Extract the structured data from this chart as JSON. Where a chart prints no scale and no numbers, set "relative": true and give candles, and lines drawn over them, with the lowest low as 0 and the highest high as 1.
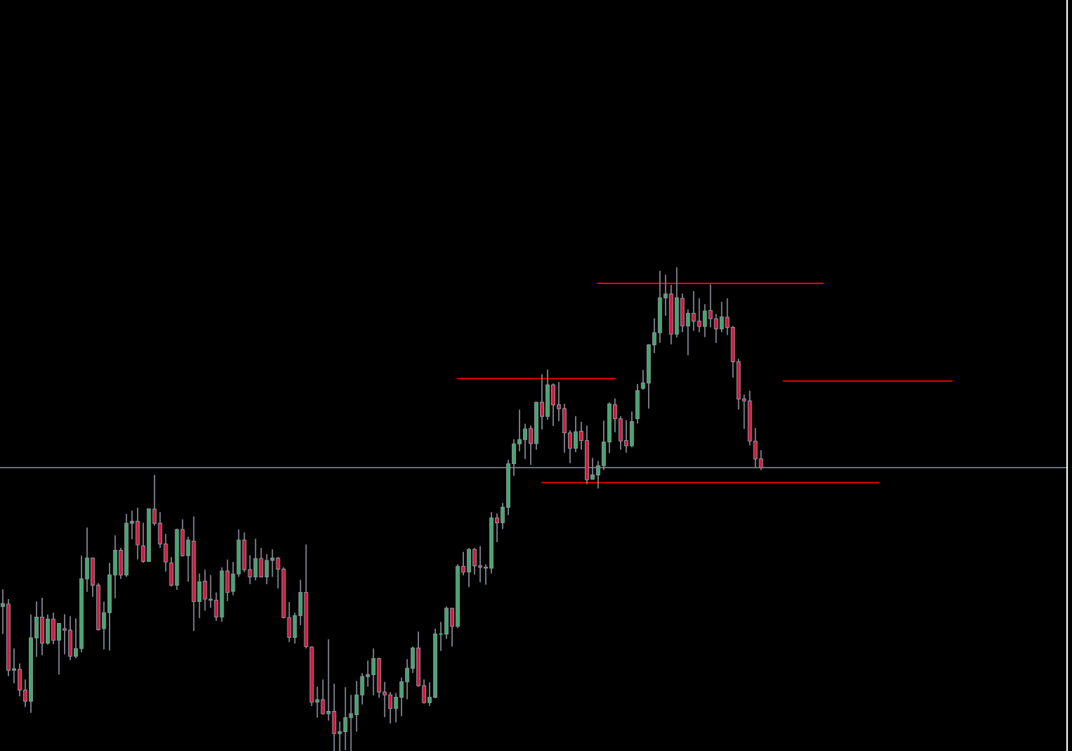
{
  "chart_data": {
    "type": "candlestick",
    "relative": true,
    "categories": [
      null,
      null,
      null,
      null,
      null,
      null,
      null,
      null,
      null,
      null,
      null,
      null,
      null,
      null,
      null,
      null,
      null,
      null,
      null,
      null,
      null,
      null,
      null,
      null,
      null,
      null,
      null,
      null,
      null,
      null,
      null,
      null,
      null,
      null,
      null,
      null,
      null,
      null,
      null,
      null,
      null,
      null,
      null,
      null,
      null,
      null,
      null,
      null,
      null,
      null,
      null,
      null,
      null,
      null,
      null,
      null,
      null,
      null,
      null,
      null,
      null,
      null,
      null,
      null,
      null,
      null,
      null,
      null,
      null,
      null,
      null,
      null,
      null,
      null,
      null,
      null,
      null,
      null,
      null,
      null,
      null,
      null,
      null,
      null,
      null,
      null,
      null,
      null,
      null,
      null,
      null,
      null,
      null,
      null,
      null,
      null,
      null,
      null,
      null,
      null,
      null,
      null,
      null,
      null,
      null,
      null,
      null,
      null,
      null,
      null,
      null,
      null,
      null,
      null,
      null,
      null,
      null,
      null,
      null,
      null,
      null,
      null,
      null,
      null,
      null,
      null,
      null,
      null,
      null,
      null,
      null,
      null,
      null,
      null,
      null,
      null,
      null,
      null,
      null,
      null,
      null,
      null,
      null,
      null,
      null,
      null,
      null,
      null,
      null,
      null,
      null,
      null,
      null,
      null,
      null,
      null,
      null,
      null,
      null,
      null,
      null,
      null,
      null,
      null,
      null,
      null,
      null,
      null,
      null,
      null,
      null,
      null,
      null,
      null,
      null,
      null,
      null,
      null,
      null,
      null,
      null,
      null,
      null,
      null,
      null,
      null,
      null,
      null,
      null,
      null
    ],
    "ohlc": [
      [
        0.299,
        0.334,
        0.242,
        0.305
      ],
      [
        0.304,
        0.314,
        0.155,
        0.167
      ],
      [
        0.167,
        0.212,
        0.14,
        0.17
      ],
      [
        0.169,
        0.181,
        0.113,
        0.126
      ],
      [
        0.126,
        0.148,
        0.091,
        0.103
      ],
      [
        0.103,
        0.282,
        0.079,
        0.234
      ],
      [
        0.234,
        0.309,
        0.195,
        0.277
      ],
      [
        0.277,
        0.317,
        0.198,
        0.223
      ],
      [
        0.223,
        0.282,
        0.22,
        0.273
      ],
      [
        0.273,
        0.286,
        0.221,
        0.229
      ],
      [
        0.229,
        0.265,
        0.158,
        0.264
      ],
      [
        0.253,
        0.283,
        0.2,
        0.25
      ],
      [
        0.25,
        0.279,
        0.188,
        0.196
      ],
      [
        0.196,
        0.274,
        0.192,
        0.212
      ],
      [
        0.212,
        0.404,
        0.204,
        0.356
      ],
      [
        0.356,
        0.462,
        0.329,
        0.399
      ],
      [
        0.399,
        0.399,
        0.319,
        0.343
      ],
      [
        0.343,
        0.347,
        0.249,
        0.251
      ],
      [
        0.253,
        0.309,
        0.21,
        0.286
      ],
      [
        0.286,
        0.389,
        0.208,
        0.364
      ],
      [
        0.364,
        0.446,
        0.316,
        0.415
      ],
      [
        0.415,
        0.42,
        0.356,
        0.364
      ],
      [
        0.364,
        0.49,
        0.36,
        0.471
      ],
      [
        0.471,
        0.497,
        0.438,
        0.475
      ],
      [
        0.475,
        0.503,
        0.396,
        0.426
      ],
      [
        0.424,
        0.472,
        0.389,
        0.392
      ],
      [
        0.392,
        0.501,
        0.391,
        0.501
      ],
      [
        0.5,
        0.571,
        0.466,
        0.471
      ],
      [
        0.471,
        0.494,
        0.42,
        0.428
      ],
      [
        0.428,
        0.449,
        0.371,
        0.391
      ],
      [
        0.389,
        0.401,
        0.34,
        0.343
      ],
      [
        0.343,
        0.46,
        0.333,
        0.458
      ],
      [
        0.458,
        0.479,
        0.402,
        0.404
      ],
      [
        0.404,
        0.443,
        0.35,
        0.436
      ],
      [
        0.434,
        0.485,
        0.248,
        0.309
      ],
      [
        0.309,
        0.367,
        0.275,
        0.35
      ],
      [
        0.351,
        0.375,
        0.29,
        0.314
      ],
      [
        0.312,
        0.364,
        0.296,
        0.314
      ],
      [
        0.312,
        0.328,
        0.269,
        0.277
      ],
      [
        0.277,
        0.38,
        0.267,
        0.372
      ],
      [
        0.372,
        0.396,
        0.31,
        0.328
      ],
      [
        0.33,
        0.391,
        0.322,
        0.366
      ],
      [
        0.366,
        0.458,
        0.36,
        0.436
      ],
      [
        0.436,
        0.452,
        0.37,
        0.375
      ],
      [
        0.375,
        0.405,
        0.345,
        0.36
      ],
      [
        0.36,
        0.439,
        0.353,
        0.398
      ],
      [
        0.398,
        0.42,
        0.359,
        0.36
      ],
      [
        0.36,
        0.407,
        0.345,
        0.394
      ],
      [
        0.394,
        0.417,
        0.36,
        0.399
      ],
      [
        0.399,
        0.401,
        0.336,
        0.376
      ],
      [
        0.376,
        0.38,
        0.274,
        0.276
      ],
      [
        0.276,
        0.308,
        0.225,
        0.235
      ],
      [
        0.235,
        0.286,
        0.222,
        0.28
      ],
      [
        0.28,
        0.354,
        0.26,
        0.328
      ],
      [
        0.328,
        0.427,
        0.212,
        0.216
      ],
      [
        0.215,
        0.216,
        0.093,
        0.101
      ],
      [
        0.101,
        0.133,
        0.069,
        0.106
      ],
      [
        0.106,
        0.148,
        0.075,
        0.077
      ],
      [
        0.077,
        0.231,
        0.063,
        0.082
      ],
      [
        0.082,
        0.139,
        0.0,
        0.036
      ],
      [
        0.036,
        0.061,
        0.0,
        0.04
      ],
      [
        0.04,
        0.132,
        0.002,
        0.069
      ],
      [
        0.069,
        0.116,
        0.0,
        0.077
      ],
      [
        0.075,
        0.145,
        0.04,
        0.116
      ],
      [
        0.116,
        0.161,
        0.096,
        0.154
      ],
      [
        0.154,
        0.187,
        0.133,
        0.158
      ],
      [
        0.158,
        0.212,
        0.115,
        0.191
      ],
      [
        0.191,
        0.193,
        0.11,
        0.122
      ],
      [
        0.122,
        0.143,
        0.07,
        0.116
      ],
      [
        0.116,
        0.122,
        0.057,
        0.088
      ],
      [
        0.088,
        0.12,
        0.059,
        0.111
      ],
      [
        0.111,
        0.152,
        0.072,
        0.143
      ],
      [
        0.143,
        0.19,
        0.107,
        0.171
      ],
      [
        0.171,
        0.216,
        0.161,
        0.213
      ],
      [
        0.213,
        0.247,
        0.133,
        0.135
      ],
      [
        0.135,
        0.148,
        0.098,
        0.1
      ],
      [
        0.1,
        0.142,
        0.093,
        0.111
      ],
      [
        0.111,
        0.253,
        0.109,
        0.242
      ],
      [
        0.242,
        0.267,
        0.207,
        0.242
      ],
      [
        0.242,
        0.299,
        0.232,
        0.295
      ],
      [
        0.295,
        0.296,
        0.216,
        0.258
      ],
      [
        0.258,
        0.386,
        0.254,
        0.382
      ],
      [
        0.382,
        0.412,
        0.363,
        0.37
      ],
      [
        0.37,
        0.42,
        0.339,
        0.417
      ],
      [
        0.417,
        0.42,
        0.365,
        0.383
      ],
      [
        0.383,
        0.424,
        0.349,
        0.38
      ],
      [
        0.38,
        0.386,
        0.344,
        0.378
      ],
      [
        0.378,
        0.494,
        0.367,
        0.482
      ],
      [
        0.482,
        0.491,
        0.432,
        0.472
      ],
      [
        0.472,
        0.513,
        0.459,
        0.504
      ],
      [
        0.504,
        0.602,
        0.488,
        0.594
      ],
      [
        0.594,
        0.645,
        0.569,
        0.635
      ],
      [
        0.635,
        0.706,
        0.62,
        0.644
      ],
      [
        0.644,
        0.677,
        0.604,
        0.666
      ],
      [
        0.667,
        0.673,
        0.592,
        0.636
      ],
      [
        0.636,
        0.722,
        0.623,
        0.721
      ],
      [
        0.721,
        0.779,
        0.665,
        0.692
      ],
      [
        0.692,
        0.789,
        0.685,
        0.757
      ],
      [
        0.757,
        0.76,
        0.672,
        0.716
      ],
      [
        0.716,
        0.763,
        0.682,
        0.708
      ],
      [
        0.708,
        0.718,
        0.617,
        0.658
      ],
      [
        0.658,
        0.663,
        0.595,
        0.626
      ],
      [
        0.626,
        0.692,
        0.618,
        0.66
      ],
      [
        0.661,
        0.681,
        0.623,
        0.642
      ],
      [
        0.642,
        0.673,
        0.552,
        0.561
      ],
      [
        0.562,
        0.606,
        0.561,
        0.571
      ],
      [
        0.571,
        0.6,
        0.543,
        0.59
      ],
      [
        0.59,
        0.683,
        0.581,
        0.639
      ],
      [
        0.639,
        0.721,
        0.616,
        0.718
      ],
      [
        0.716,
        0.729,
        0.659,
        0.687
      ],
      [
        0.687,
        0.692,
        0.623,
        0.641
      ],
      [
        0.642,
        0.684,
        0.617,
        0.631
      ],
      [
        0.631,
        0.702,
        0.628,
        0.681
      ],
      [
        0.687,
        0.759,
        0.677,
        0.745
      ],
      [
        0.75,
        0.788,
        0.747,
        0.761
      ],
      [
        0.761,
        0.841,
        0.708,
        0.84
      ],
      [
        0.84,
        0.895,
        0.823,
        0.865
      ],
      [
        0.865,
        0.993,
        0.844,
        0.937
      ],
      [
        0.937,
        0.985,
        0.9,
        0.945
      ],
      [
        0.945,
        0.964,
        0.841,
        0.862
      ],
      [
        0.862,
        1.0,
        0.855,
        0.937
      ],
      [
        0.936,
        0.946,
        0.866,
        0.879
      ],
      [
        0.879,
        0.913,
        0.818,
        0.905
      ],
      [
        0.905,
        0.951,
        0.869,
        0.889
      ],
      [
        0.889,
        0.936,
        0.866,
        0.878
      ],
      [
        0.878,
        0.924,
        0.856,
        0.91
      ],
      [
        0.911,
        0.965,
        0.876,
        0.894
      ],
      [
        0.894,
        0.904,
        0.844,
        0.873
      ],
      [
        0.873,
        0.929,
        0.866,
        0.898
      ],
      [
        0.897,
        0.936,
        0.86,
        0.876
      ],
      [
        0.876,
        0.879,
        0.772,
        0.805
      ],
      [
        0.805,
        0.811,
        0.706,
        0.728
      ],
      [
        0.728,
        0.737,
        0.666,
        0.724
      ],
      [
        0.724,
        0.745,
        0.632,
        0.641
      ],
      [
        0.641,
        0.668,
        0.586,
        0.604
      ],
      [
        0.604,
        0.622,
        0.581,
        0.586
      ],
      null,
      null,
      null,
      null,
      null,
      null,
      null,
      null,
      null,
      null,
      null,
      null,
      null,
      null,
      null,
      null,
      null,
      null,
      null,
      null,
      null,
      null,
      null,
      null,
      null,
      null,
      null,
      null,
      null,
      null,
      null,
      null,
      null,
      null,
      null,
      null,
      null,
      null,
      null,
      null,
      null,
      null,
      null,
      null,
      null,
      null,
      null,
      null,
      null,
      null,
      null,
      null,
      null,
      null
    ],
    "colors": [
      "#3cab6b",
      "#dc143c",
      "#3cab6b",
      "#dc143c",
      "#dc143c",
      "#3cab6b",
      "#3cab6b",
      "#dc143c",
      "#3cab6b",
      "#dc143c",
      "#3cab6b",
      "#dc143c",
      "#dc143c",
      "#3cab6b",
      "#3cab6b",
      "#3cab6b",
      "#dc143c",
      "#dc143c",
      "#3cab6b",
      "#3cab6b",
      "#3cab6b",
      "#dc143c",
      "#3cab6b",
      "#3cab6b",
      "#dc143c",
      "#dc143c",
      "#3cab6b",
      "#dc143c",
      "#dc143c",
      "#dc143c",
      "#dc143c",
      "#3cab6b",
      "#dc143c",
      "#3cab6b",
      "#dc143c",
      "#3cab6b",
      "#dc143c",
      "#3cab6b",
      "#dc143c",
      "#3cab6b",
      "#dc143c",
      "#3cab6b",
      "#3cab6b",
      "#dc143c",
      "#dc143c",
      "#3cab6b",
      "#dc143c",
      "#3cab6b",
      "#3cab6b",
      "#dc143c",
      "#dc143c",
      "#dc143c",
      "#3cab6b",
      "#3cab6b",
      "#dc143c",
      "#dc143c",
      "#3cab6b",
      "#dc143c",
      "#3cab6b",
      "#dc143c",
      "#3cab6b",
      "#3cab6b",
      "#3cab6b",
      "#3cab6b",
      "#3cab6b",
      "#3cab6b",
      "#3cab6b",
      "#dc143c",
      "#dc143c",
      "#dc143c",
      "#3cab6b",
      "#3cab6b",
      "#3cab6b",
      "#3cab6b",
      "#dc143c",
      "#dc143c",
      "#3cab6b",
      "#3cab6b",
      "#3cab6b",
      "#3cab6b",
      "#dc143c",
      "#3cab6b",
      "#dc143c",
      "#3cab6b",
      "#dc143c",
      "#dc143c",
      "#dc143c",
      "#3cab6b",
      "#dc143c",
      "#3cab6b",
      "#3cab6b",
      "#3cab6b",
      "#3cab6b",
      "#3cab6b",
      "#dc143c",
      "#3cab6b",
      "#dc143c",
      "#3cab6b",
      "#dc143c",
      "#dc143c",
      "#dc143c",
      "#dc143c",
      "#3cab6b",
      "#dc143c",
      "#dc143c",
      "#3cab6b",
      "#3cab6b",
      "#3cab6b",
      "#3cab6b",
      "#dc143c",
      "#dc143c",
      "#dc143c",
      "#3cab6b",
      "#3cab6b",
      "#3cab6b",
      "#3cab6b",
      "#3cab6b",
      "#3cab6b",
      "#3cab6b",
      "#dc143c",
      "#3cab6b",
      "#dc143c",
      "#3cab6b",
      "#dc143c",
      "#dc143c",
      "#3cab6b",
      "#dc143c",
      "#dc143c",
      "#3cab6b",
      "#dc143c",
      "#dc143c",
      "#dc143c",
      "#dc143c",
      "#dc143c",
      "#dc143c",
      "#dc143c",
      null,
      null,
      null,
      null,
      null,
      null,
      null,
      null,
      null,
      null,
      null,
      null,
      null,
      null,
      null,
      null,
      null,
      null,
      null,
      null,
      null,
      null,
      null,
      null,
      null,
      null,
      null,
      null,
      null,
      null,
      null,
      null,
      null,
      null,
      null,
      null,
      null,
      null,
      null,
      null,
      null,
      null,
      null,
      null,
      null,
      null,
      null,
      null,
      null,
      null,
      null,
      null,
      null,
      null
    ],
    "series": [
      {
        "type": "line",
        "color": "#ff0000",
        "values": [
          null,
          null,
          null,
          null,
          null,
          null,
          null,
          null,
          null,
          null,
          null,
          null,
          null,
          null,
          null,
          null,
          null,
          null,
          null,
          null,
          null,
          null,
          null,
          null,
          null,
          null,
          null,
          null,
          null,
          null,
          null,
          null,
          null,
          null,
          null,
          null,
          null,
          null,
          null,
          null,
          null,
          null,
          null,
          null,
          null,
          null,
          null,
          null,
          null,
          null,
          null,
          null,
          null,
          null,
          null,
          null,
          null,
          null,
          null,
          null,
          null,
          null,
          null,
          null,
          null,
          null,
          null,
          null,
          null,
          null,
          null,
          null,
          null,
          null,
          null,
          null,
          null,
          null,
          null,
          null,
          null,
          0.77,
          0.77,
          0.77,
          0.77,
          0.77,
          0.77,
          0.77,
          0.77,
          0.77,
          0.77,
          0.77,
          0.77,
          0.77,
          0.77,
          0.77,
          0.77,
          0.77,
          0.77,
          0.77,
          0.77,
          0.77,
          0.77,
          0.77,
          0.77,
          0.77,
          0.77,
          0.77,
          0.77,
          0.77,
          null,
          null,
          null,
          null,
          null,
          null,
          null,
          null,
          null,
          null,
          null,
          null,
          null,
          null,
          null,
          null,
          null,
          null,
          null,
          null,
          null,
          null,
          null,
          null,
          null,
          null,
          null,
          null,
          null,
          null,
          null,
          null,
          null,
          null,
          null,
          null,
          null,
          null,
          null,
          null,
          null,
          null,
          null,
          null,
          null,
          null,
          null,
          null,
          null,
          null,
          null,
          null,
          null,
          null,
          null,
          null,
          null,
          null,
          null,
          null,
          null,
          null,
          null,
          null,
          null,
          null,
          null,
          null,
          null,
          null,
          null,
          null,
          null,
          null,
          null,
          null,
          null,
          null,
          null,
          null
        ]
      },
      {
        "type": "line",
        "color": "#ff0000",
        "values": [
          null,
          null,
          null,
          null,
          null,
          null,
          null,
          null,
          null,
          null,
          null,
          null,
          null,
          null,
          null,
          null,
          null,
          null,
          null,
          null,
          null,
          null,
          null,
          null,
          null,
          null,
          null,
          null,
          null,
          null,
          null,
          null,
          null,
          null,
          null,
          null,
          null,
          null,
          null,
          null,
          null,
          null,
          null,
          null,
          null,
          null,
          null,
          null,
          null,
          null,
          null,
          null,
          null,
          null,
          null,
          null,
          null,
          null,
          null,
          null,
          null,
          null,
          null,
          null,
          null,
          null,
          null,
          null,
          null,
          null,
          null,
          null,
          null,
          null,
          null,
          null,
          null,
          null,
          null,
          null,
          null,
          null,
          null,
          null,
          null,
          null,
          null,
          null,
          null,
          null,
          null,
          null,
          null,
          null,
          null,
          null,
          null,
          null,
          null,
          null,
          null,
          null,
          null,
          null,
          null,
          null,
          0.967,
          0.967,
          0.967,
          0.967,
          0.967,
          0.967,
          0.967,
          0.967,
          0.967,
          0.967,
          0.967,
          0.967,
          0.967,
          0.967,
          0.967,
          0.967,
          0.967,
          0.967,
          0.967,
          0.967,
          0.967,
          0.967,
          0.967,
          0.967,
          0.967,
          0.967,
          0.967,
          0.967,
          0.967,
          0.967,
          0.967,
          0.967,
          0.967,
          0.967,
          0.967,
          0.967,
          0.967,
          0.967,
          0.967,
          0.967,
          0.967,
          null,
          null,
          null,
          null,
          null,
          null,
          null,
          null,
          null,
          null,
          null,
          null,
          null,
          null,
          null,
          null,
          null,
          null,
          null,
          null,
          null,
          null,
          null,
          null,
          null,
          null,
          null,
          null,
          null,
          null,
          null,
          null,
          null,
          null,
          null,
          null,
          null,
          null,
          null,
          null,
          null,
          null,
          null
        ]
      },
      {
        "type": "line",
        "color": "#ff0000",
        "values": [
          null,
          null,
          null,
          null,
          null,
          null,
          null,
          null,
          null,
          null,
          null,
          null,
          null,
          null,
          null,
          null,
          null,
          null,
          null,
          null,
          null,
          null,
          null,
          null,
          null,
          null,
          null,
          null,
          null,
          null,
          null,
          null,
          null,
          null,
          null,
          null,
          null,
          null,
          null,
          null,
          null,
          null,
          null,
          null,
          null,
          null,
          null,
          null,
          null,
          null,
          null,
          null,
          null,
          null,
          null,
          null,
          null,
          null,
          null,
          null,
          null,
          null,
          null,
          null,
          null,
          null,
          null,
          null,
          null,
          null,
          null,
          null,
          null,
          null,
          null,
          null,
          null,
          null,
          null,
          null,
          null,
          null,
          null,
          null,
          null,
          null,
          null,
          null,
          null,
          null,
          null,
          null,
          null,
          null,
          null,
          null,
          null,
          null,
          null,
          null,
          null,
          null,
          null,
          null,
          null,
          null,
          null,
          null,
          null,
          null,
          null,
          null,
          null,
          null,
          null,
          null,
          null,
          null,
          null,
          null,
          null,
          null,
          null,
          null,
          null,
          null,
          null,
          null,
          null,
          null,
          null,
          null,
          null,
          null,
          null,
          null,
          null,
          null,
          null,
          0.765,
          0.765,
          0.765,
          0.765,
          0.765,
          0.765,
          0.765,
          0.765,
          0.765,
          0.765,
          0.765,
          0.765,
          0.765,
          0.765,
          0.765,
          0.765,
          0.765,
          0.765,
          0.765,
          0.765,
          0.765,
          0.765,
          0.765,
          0.765,
          0.765,
          0.765,
          0.765,
          0.765,
          0.765,
          0.765,
          0.765,
          null,
          null,
          null,
          null,
          null,
          null,
          null,
          null,
          null,
          null,
          null,
          null,
          null,
          null,
          null,
          null,
          null,
          null,
          null,
          null
        ]
      },
      {
        "type": "line",
        "color": "#ff0000",
        "values": [
          null,
          null,
          null,
          null,
          null,
          null,
          null,
          null,
          null,
          null,
          null,
          null,
          null,
          null,
          null,
          null,
          null,
          null,
          null,
          null,
          null,
          null,
          null,
          null,
          null,
          null,
          null,
          null,
          null,
          null,
          null,
          null,
          null,
          null,
          null,
          null,
          null,
          null,
          null,
          null,
          null,
          null,
          null,
          null,
          null,
          null,
          null,
          null,
          null,
          null,
          null,
          null,
          null,
          null,
          null,
          null,
          null,
          null,
          null,
          null,
          null,
          null,
          null,
          null,
          null,
          null,
          null,
          null,
          null,
          null,
          null,
          null,
          null,
          null,
          null,
          null,
          null,
          null,
          null,
          null,
          null,
          null,
          null,
          null,
          null,
          null,
          null,
          null,
          null,
          null,
          null,
          null,
          null,
          null,
          null,
          null,
          0.555,
          0.555,
          0.555,
          0.555,
          0.555,
          0.555,
          0.555,
          0.555,
          0.555,
          0.555,
          0.555,
          0.555,
          0.555,
          0.555,
          0.555,
          0.555,
          0.555,
          0.555,
          0.555,
          0.555,
          0.555,
          0.555,
          0.555,
          0.555,
          0.555,
          0.555,
          0.555,
          0.555,
          0.555,
          0.555,
          0.555,
          0.555,
          0.555,
          0.555,
          0.555,
          0.555,
          0.555,
          0.555,
          0.555,
          0.555,
          0.555,
          0.555,
          0.555,
          0.555,
          0.555,
          0.555,
          0.555,
          0.555,
          0.555,
          0.555,
          0.555,
          0.555,
          0.555,
          0.555,
          0.555,
          0.555,
          0.555,
          0.555,
          0.555,
          0.555,
          0.555,
          null,
          null,
          null,
          null,
          null,
          null,
          null,
          null,
          null,
          null,
          null,
          null,
          null,
          null,
          null,
          null,
          null,
          null,
          null,
          null,
          null,
          null,
          null,
          null,
          null,
          null,
          null,
          null,
          null,
          null,
          null,
          null,
          null
        ]
      }
    ],
    "ref_lines": [
      {
        "axis": "y",
        "value": 0.586,
        "color": "#8b919b"
      }
    ]
  }
}
